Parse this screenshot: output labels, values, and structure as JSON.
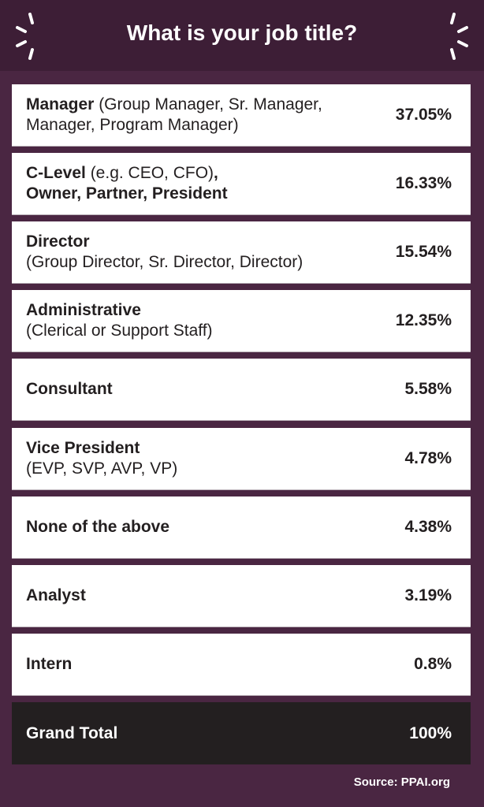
{
  "header": {
    "title": "What is your job title?"
  },
  "colors": {
    "header_bg": "#3d1e36",
    "page_bg": "#4a2642",
    "row_bg": "#ffffff",
    "total_bg": "#231f20",
    "text": "#231f20"
  },
  "rows": [
    {
      "segments": [
        {
          "text": "Manager",
          "bold": true
        },
        {
          "text": " (Group Manager, Sr. Manager, Manager, Program Manager)",
          "bold": false
        }
      ],
      "percent": "37.05%"
    },
    {
      "segments": [
        {
          "text": "C-Level",
          "bold": true
        },
        {
          "text": " (e.g. CEO, CFO)",
          "bold": false
        },
        {
          "text": ",",
          "bold": true
        },
        {
          "text": "\n",
          "bold": false
        },
        {
          "text": "Owner, Partner, President",
          "bold": true
        }
      ],
      "percent": "16.33%"
    },
    {
      "segments": [
        {
          "text": "Director",
          "bold": true
        },
        {
          "text": "\n",
          "bold": false
        },
        {
          "text": "(Group Director, Sr. Director, Director)",
          "bold": false
        }
      ],
      "percent": "15.54%"
    },
    {
      "segments": [
        {
          "text": "Administrative",
          "bold": true
        },
        {
          "text": "\n",
          "bold": false
        },
        {
          "text": "(Clerical or Support Staff)",
          "bold": false
        }
      ],
      "percent": "12.35%"
    },
    {
      "segments": [
        {
          "text": "Consultant",
          "bold": true
        }
      ],
      "percent": "5.58%"
    },
    {
      "segments": [
        {
          "text": "Vice President",
          "bold": true
        },
        {
          "text": "\n",
          "bold": false
        },
        {
          "text": "(EVP, SVP, AVP, VP)",
          "bold": false
        }
      ],
      "percent": "4.78%"
    },
    {
      "segments": [
        {
          "text": "None of the above",
          "bold": true
        }
      ],
      "percent": "4.38%"
    },
    {
      "segments": [
        {
          "text": "Analyst",
          "bold": true
        }
      ],
      "percent": "3.19%"
    },
    {
      "segments": [
        {
          "text": "Intern",
          "bold": true
        }
      ],
      "percent": "0.8%"
    }
  ],
  "total": {
    "label": "Grand Total",
    "percent": "100%"
  },
  "footer": {
    "source": "Source: PPAI.org"
  }
}
